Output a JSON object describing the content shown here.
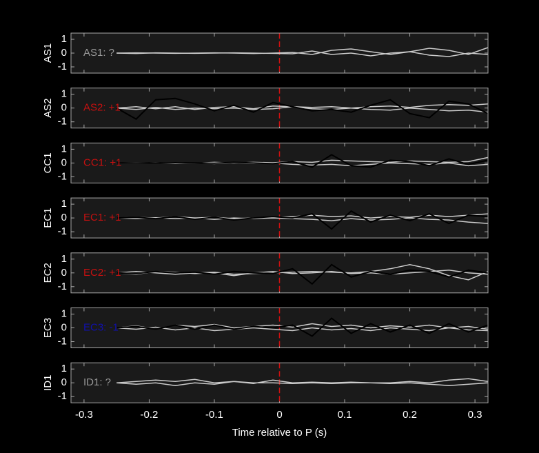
{
  "chart_data": [
    {
      "type": "line",
      "ylabel": "AS1",
      "annotation": {
        "text": "AS1: ?",
        "color": "#9a9a9a"
      },
      "x": [
        -0.25,
        -0.22,
        -0.19,
        -0.16,
        -0.13,
        -0.1,
        -0.07,
        -0.04,
        -0.01,
        0.02,
        0.05,
        0.08,
        0.11,
        0.14,
        0.17,
        0.2,
        0.23,
        0.26,
        0.29,
        0.32
      ],
      "series": [
        {
          "color": "#cccccc",
          "values": [
            0,
            0.02,
            0,
            -0.02,
            0,
            0.02,
            0,
            -0.03,
            0,
            0.05,
            -0.1,
            0.2,
            0.3,
            0.1,
            -0.1,
            0.1,
            0.35,
            0.2,
            -0.1,
            0.4
          ]
        },
        {
          "color": "#cccccc",
          "values": [
            0,
            -0.03,
            0.02,
            0,
            -0.02,
            0,
            0.02,
            0,
            -0.02,
            -0.05,
            0.15,
            -0.1,
            0,
            -0.2,
            0,
            0.1,
            -0.15,
            -0.25,
            0,
            -0.1
          ]
        }
      ],
      "xlim": [
        -0.32,
        0.32
      ],
      "ylim": [
        -1.45,
        1.45
      ],
      "yticks": [
        -1,
        0,
        1
      ],
      "xticks": [
        -0.3,
        -0.2,
        -0.1,
        0,
        0.1,
        0.2,
        0.3
      ],
      "show_xtick_labels": false,
      "vline": {
        "x": 0,
        "color": "#d01010"
      }
    },
    {
      "type": "line",
      "ylabel": "AS2",
      "annotation": {
        "text": "AS2: +1",
        "color": "#c81010"
      },
      "x": [
        -0.25,
        -0.22,
        -0.19,
        -0.16,
        -0.13,
        -0.1,
        -0.07,
        -0.04,
        -0.01,
        0.02,
        0.05,
        0.08,
        0.11,
        0.14,
        0.17,
        0.2,
        0.23,
        0.26,
        0.29,
        0.32
      ],
      "series": [
        {
          "color": "#cccccc",
          "values": [
            0,
            0.1,
            -0.05,
            0.1,
            -0.1,
            0.05,
            0.1,
            -0.05,
            0.15,
            0.1,
            0.05,
            0.1,
            0,
            0.1,
            0.15,
            0.05,
            0.2,
            0.25,
            0.2,
            0.3
          ]
        },
        {
          "color": "#cccccc",
          "values": [
            0,
            -0.1,
            0.05,
            -0.1,
            0,
            -0.05,
            0,
            -0.1,
            -0.05,
            0.1,
            -0.05,
            -0.1,
            0,
            -0.1,
            -0.15,
            0,
            -0.1,
            -0.2,
            -0.15,
            -0.3
          ]
        },
        {
          "color": "#000000",
          "values": [
            0,
            -0.8,
            0.6,
            0.7,
            0.3,
            -0.2,
            0.2,
            -0.3,
            0.4,
            0.1,
            -0.2,
            -0.1,
            -0.3,
            0.2,
            0.6,
            -0.4,
            -0.7,
            0.5,
            0.3,
            -0.4
          ]
        }
      ],
      "xlim": [
        -0.32,
        0.32
      ],
      "ylim": [
        -1.45,
        1.45
      ],
      "yticks": [
        -1,
        0,
        1
      ],
      "xticks": [
        -0.3,
        -0.2,
        -0.1,
        0,
        0.1,
        0.2,
        0.3
      ],
      "show_xtick_labels": false,
      "vline": {
        "x": 0,
        "color": "#d01010"
      }
    },
    {
      "type": "line",
      "ylabel": "CC1",
      "annotation": {
        "text": "CC1: +1",
        "color": "#c81010"
      },
      "x": [
        -0.25,
        -0.22,
        -0.19,
        -0.16,
        -0.13,
        -0.1,
        -0.07,
        -0.04,
        -0.01,
        0.02,
        0.05,
        0.08,
        0.11,
        0.14,
        0.17,
        0.2,
        0.23,
        0.26,
        0.29,
        0.32
      ],
      "series": [
        {
          "color": "#cccccc",
          "values": [
            0,
            0.02,
            0,
            0.03,
            -0.02,
            0.05,
            0,
            0.05,
            0.02,
            0.1,
            0.05,
            0.2,
            0.15,
            0.1,
            0.05,
            0.15,
            0.1,
            0.05,
            0.1,
            0.4
          ]
        },
        {
          "color": "#cccccc",
          "values": [
            0,
            -0.02,
            0.02,
            -0.03,
            0,
            -0.05,
            0.02,
            -0.03,
            0,
            -0.1,
            -0.15,
            -0.1,
            -0.2,
            -0.1,
            0,
            -0.05,
            -0.1,
            0,
            -0.2,
            -0.1
          ]
        },
        {
          "color": "#000000",
          "values": [
            0,
            0,
            0,
            0.02,
            0,
            -0.02,
            0.05,
            0,
            -0.05,
            0.1,
            -0.3,
            0.6,
            -0.2,
            -0.3,
            0.2,
            0.1,
            -0.2,
            0.3,
            -0.1,
            0.2
          ]
        }
      ],
      "xlim": [
        -0.32,
        0.32
      ],
      "ylim": [
        -1.45,
        1.45
      ],
      "yticks": [
        -1,
        0,
        1
      ],
      "xticks": [
        -0.3,
        -0.2,
        -0.1,
        0,
        0.1,
        0.2,
        0.3
      ],
      "show_xtick_labels": false,
      "vline": {
        "x": 0,
        "color": "#d01010"
      }
    },
    {
      "type": "line",
      "ylabel": "EC1",
      "annotation": {
        "text": "EC1: +1",
        "color": "#c81010"
      },
      "x": [
        -0.25,
        -0.22,
        -0.19,
        -0.16,
        -0.13,
        -0.1,
        -0.07,
        -0.04,
        -0.01,
        0.02,
        0.05,
        0.08,
        0.11,
        0.14,
        0.17,
        0.2,
        0.23,
        0.26,
        0.29,
        0.32
      ],
      "series": [
        {
          "color": "#cccccc",
          "values": [
            0,
            0.05,
            0,
            0.1,
            0,
            0.05,
            -0.05,
            0,
            0.05,
            0.1,
            0.2,
            0.1,
            0.15,
            0,
            0.1,
            0.05,
            0.2,
            0.1,
            0.2,
            0.3
          ]
        },
        {
          "color": "#cccccc",
          "values": [
            0,
            -0.05,
            0.02,
            -0.05,
            0,
            -0.1,
            0,
            -0.05,
            0,
            -0.05,
            -0.1,
            -0.2,
            -0.05,
            -0.15,
            -0.1,
            0,
            -0.1,
            -0.15,
            -0.3,
            -0.4
          ]
        },
        {
          "color": "#000000",
          "values": [
            0,
            0.05,
            -0.05,
            0.1,
            -0.1,
            0.05,
            -0.15,
            0,
            0.1,
            0,
            0.3,
            -0.8,
            0.5,
            -0.3,
            0.2,
            -0.2,
            0.3,
            -0.4,
            0.2,
            0.1
          ]
        }
      ],
      "xlim": [
        -0.32,
        0.32
      ],
      "ylim": [
        -1.45,
        1.45
      ],
      "yticks": [
        -1,
        0,
        1
      ],
      "xticks": [
        -0.3,
        -0.2,
        -0.1,
        0,
        0.1,
        0.2,
        0.3
      ],
      "show_xtick_labels": false,
      "vline": {
        "x": 0,
        "color": "#d01010"
      }
    },
    {
      "type": "line",
      "ylabel": "EC2",
      "annotation": {
        "text": "EC2: +1",
        "color": "#c81010"
      },
      "x": [
        -0.25,
        -0.22,
        -0.19,
        -0.16,
        -0.13,
        -0.1,
        -0.07,
        -0.04,
        -0.01,
        0.02,
        0.05,
        0.08,
        0.11,
        0.14,
        0.17,
        0.2,
        0.23,
        0.26,
        0.29,
        0.32
      ],
      "series": [
        {
          "color": "#cccccc",
          "values": [
            0,
            0.1,
            0,
            -0.1,
            0,
            0.05,
            -0.1,
            -0.05,
            0,
            0.05,
            0.1,
            0.05,
            0,
            0.1,
            0.3,
            0.6,
            0.3,
            -0.2,
            -0.5,
            0.1
          ]
        },
        {
          "color": "#cccccc",
          "values": [
            0,
            -0.1,
            0.1,
            0.05,
            -0.05,
            0,
            -0.2,
            0,
            0.1,
            -0.05,
            0,
            0.1,
            -0.05,
            0,
            -0.1,
            0,
            0.1,
            0.2,
            0,
            -0.1
          ]
        },
        {
          "color": "#000000",
          "values": [
            0,
            -0.05,
            0.1,
            0,
            0.05,
            -0.1,
            0.1,
            0,
            -0.05,
            0.3,
            -0.8,
            0.6,
            -0.3,
            0.1,
            -0.1,
            0.2,
            0.1,
            -0.3,
            0.2,
            0
          ]
        }
      ],
      "xlim": [
        -0.32,
        0.32
      ],
      "ylim": [
        -1.45,
        1.45
      ],
      "yticks": [
        -1,
        0,
        1
      ],
      "xticks": [
        -0.3,
        -0.2,
        -0.1,
        0,
        0.1,
        0.2,
        0.3
      ],
      "show_xtick_labels": false,
      "vline": {
        "x": 0,
        "color": "#d01010"
      }
    },
    {
      "type": "line",
      "ylabel": "EC3",
      "annotation": {
        "text": "EC3: -1",
        "color": "#1010b0"
      },
      "x": [
        -0.25,
        -0.22,
        -0.19,
        -0.16,
        -0.13,
        -0.1,
        -0.07,
        -0.04,
        -0.01,
        0.02,
        0.05,
        0.08,
        0.11,
        0.14,
        0.17,
        0.2,
        0.23,
        0.26,
        0.29,
        0.32
      ],
      "series": [
        {
          "color": "#cccccc",
          "values": [
            0,
            0.15,
            -0.1,
            0.2,
            0.1,
            0.25,
            0,
            0.1,
            0.2,
            0.05,
            0.3,
            0.1,
            0.2,
            0,
            0.15,
            0.05,
            0.2,
            0,
            0.1,
            -0.1
          ]
        },
        {
          "color": "#cccccc",
          "values": [
            0,
            -0.1,
            0.05,
            -0.15,
            0,
            -0.2,
            -0.1,
            0,
            -0.1,
            -0.2,
            0,
            -0.15,
            -0.05,
            -0.2,
            0,
            -0.1,
            -0.2,
            0,
            -0.15,
            -0.2
          ]
        },
        {
          "color": "#000000",
          "values": [
            0,
            0.1,
            -0.1,
            0.2,
            -0.1,
            0.2,
            -0.1,
            0.1,
            0,
            0.2,
            -0.6,
            0.7,
            -0.4,
            0.3,
            -0.3,
            0.2,
            -0.4,
            0.3,
            -0.3,
            0.2
          ]
        }
      ],
      "xlim": [
        -0.32,
        0.32
      ],
      "ylim": [
        -1.45,
        1.45
      ],
      "yticks": [
        -1,
        0,
        1
      ],
      "xticks": [
        -0.3,
        -0.2,
        -0.1,
        0,
        0.1,
        0.2,
        0.3
      ],
      "show_xtick_labels": false,
      "vline": {
        "x": 0,
        "color": "#d01010"
      }
    },
    {
      "type": "line",
      "ylabel": "ID1",
      "annotation": {
        "text": "ID1: ?",
        "color": "#9a9a9a"
      },
      "x": [
        -0.25,
        -0.22,
        -0.19,
        -0.16,
        -0.13,
        -0.1,
        -0.07,
        -0.04,
        -0.01,
        0.02,
        0.05,
        0.08,
        0.11,
        0.14,
        0.17,
        0.2,
        0.23,
        0.26,
        0.29,
        0.32
      ],
      "series": [
        {
          "color": "#cccccc",
          "values": [
            0,
            0.1,
            0.2,
            0.1,
            0.25,
            0,
            0.1,
            -0.05,
            0.2,
            0,
            0.05,
            0,
            0.05,
            0,
            0,
            0.1,
            0,
            0.2,
            0.3,
            0.1
          ]
        },
        {
          "color": "#cccccc",
          "values": [
            0,
            -0.1,
            0,
            -0.2,
            0,
            -0.1,
            0.1,
            0,
            0,
            -0.05,
            0,
            -0.05,
            0,
            0,
            -0.05,
            0,
            -0.1,
            -0.2,
            -0.1,
            0
          ]
        }
      ],
      "xlim": [
        -0.32,
        0.32
      ],
      "ylim": [
        -1.45,
        1.45
      ],
      "yticks": [
        -1,
        0,
        1
      ],
      "xticks": [
        -0.3,
        -0.2,
        -0.1,
        0,
        0.1,
        0.2,
        0.3
      ],
      "show_xtick_labels": true,
      "xlabel": "Time relative to P (s)",
      "vline": {
        "x": 0,
        "color": "#d01010"
      }
    }
  ]
}
